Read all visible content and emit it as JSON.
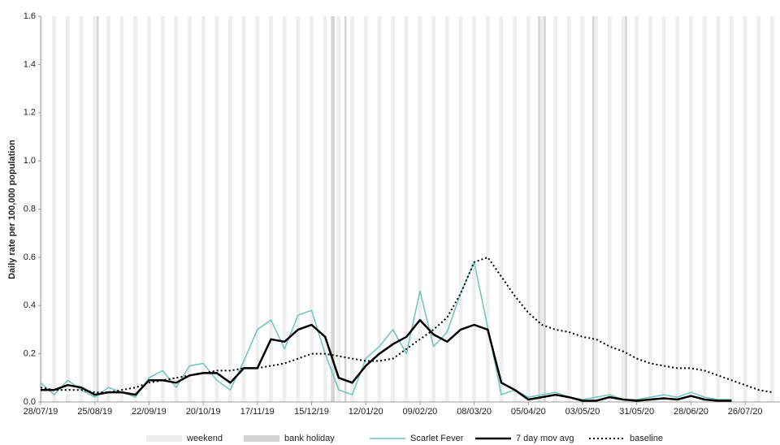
{
  "chart_data": {
    "type": "line",
    "y_label": "Daily rate per 100,000  population",
    "x": [
      "28/07/19",
      "04/08/19",
      "11/08/19",
      "18/08/19",
      "25/08/19",
      "01/09/19",
      "08/09/19",
      "15/09/19",
      "22/09/19",
      "29/09/19",
      "06/10/19",
      "13/10/19",
      "20/10/19",
      "27/10/19",
      "03/11/19",
      "10/11/19",
      "17/11/19",
      "24/11/19",
      "01/12/19",
      "08/12/19",
      "15/12/19",
      "22/12/19",
      "29/12/19",
      "05/01/20",
      "12/01/20",
      "19/01/20",
      "26/01/20",
      "02/02/20",
      "09/02/20",
      "16/02/20",
      "23/02/20",
      "01/03/20",
      "08/03/20",
      "15/03/20",
      "22/03/20",
      "29/03/20",
      "05/04/20",
      "12/04/20",
      "19/04/20",
      "26/04/20",
      "03/05/20",
      "10/05/20",
      "17/05/20",
      "24/05/20",
      "31/05/20",
      "07/06/20",
      "14/06/20",
      "21/06/20",
      "28/06/20",
      "05/07/20",
      "12/07/20",
      "19/07/20",
      "26/07/20",
      "02/08/20",
      "09/08/20"
    ],
    "series": [
      {
        "name": "Scarlet Fever",
        "color": "#6cc4bd",
        "width": 1.5,
        "dotted": false,
        "values": [
          0.08,
          0.03,
          0.09,
          0.05,
          0.02,
          0.06,
          0.04,
          0.02,
          0.1,
          0.13,
          0.06,
          0.15,
          0.16,
          0.09,
          0.05,
          0.17,
          0.3,
          0.34,
          0.22,
          0.36,
          0.38,
          0.2,
          0.05,
          0.03,
          0.18,
          0.23,
          0.3,
          0.2,
          0.46,
          0.23,
          0.29,
          0.45,
          0.58,
          0.31,
          0.03,
          0.05,
          0.02,
          0.03,
          0.04,
          0.02,
          0.01,
          0.02,
          0.03,
          0.01,
          0.01,
          0.02,
          0.03,
          0.02,
          0.04,
          0.02,
          0.01,
          0.01,
          null,
          null,
          null
        ]
      },
      {
        "name": "7 day mov avg",
        "color": "#000000",
        "width": 2.5,
        "dotted": false,
        "values": [
          0.05,
          0.05,
          0.07,
          0.06,
          0.03,
          0.04,
          0.04,
          0.03,
          0.09,
          0.09,
          0.08,
          0.11,
          0.12,
          0.12,
          0.08,
          0.14,
          0.14,
          0.26,
          0.25,
          0.3,
          0.32,
          0.27,
          0.1,
          0.08,
          0.15,
          0.2,
          0.24,
          0.27,
          0.34,
          0.28,
          0.25,
          0.3,
          0.32,
          0.3,
          0.08,
          0.05,
          0.01,
          0.02,
          0.03,
          0.02,
          0.005,
          0.005,
          0.02,
          0.01,
          0.005,
          0.01,
          0.015,
          0.01,
          0.025,
          0.01,
          0.005,
          0.005,
          null,
          null,
          null
        ]
      },
      {
        "name": "baseline",
        "color": "#000000",
        "width": 2,
        "dotted": true,
        "values": [
          0.06,
          0.05,
          0.05,
          0.05,
          0.04,
          0.04,
          0.05,
          0.06,
          0.08,
          0.09,
          0.1,
          0.11,
          0.12,
          0.13,
          0.13,
          0.14,
          0.14,
          0.15,
          0.16,
          0.18,
          0.2,
          0.2,
          0.19,
          0.18,
          0.17,
          0.17,
          0.18,
          0.22,
          0.26,
          0.3,
          0.35,
          0.45,
          0.58,
          0.6,
          0.52,
          0.44,
          0.37,
          0.32,
          0.3,
          0.29,
          0.27,
          0.26,
          0.23,
          0.21,
          0.18,
          0.16,
          0.15,
          0.14,
          0.14,
          0.13,
          0.11,
          0.09,
          0.07,
          0.05,
          0.04
        ]
      }
    ],
    "shading": [
      {
        "name": "weekend",
        "color": "#eeeeee"
      },
      {
        "name": "bank holiday",
        "color": "#d4d4d4",
        "dates": [
          "26/08/19",
          "25/12/19",
          "26/12/19",
          "01/01/20",
          "10/04/20",
          "13/04/20",
          "08/05/20",
          "25/05/20"
        ]
      }
    ],
    "xlim": [
      "28/07/19",
      "13/08/20"
    ],
    "xticks": [
      "28/07/19",
      "25/08/19",
      "22/09/19",
      "20/10/19",
      "17/11/19",
      "15/12/19",
      "12/01/20",
      "09/02/20",
      "08/03/20",
      "05/04/20",
      "03/05/20",
      "31/05/20",
      "28/06/20",
      "26/07/20"
    ],
    "ylim": [
      0,
      1.6
    ],
    "yticks": [
      {
        "value": 0,
        "label": "0.0"
      },
      {
        "value": 0.2,
        "label": "0.2"
      },
      {
        "value": 0.4,
        "label": "0.4"
      },
      {
        "value": 0.6,
        "label": "0.6"
      },
      {
        "value": 0.8,
        "label": "0.8"
      },
      {
        "value": 1.0,
        "label": "1.0"
      },
      {
        "value": 1.2,
        "label": "1.2"
      },
      {
        "value": 1.4,
        "label": "1.4"
      },
      {
        "value": 1.6,
        "label": "1.6"
      }
    ]
  }
}
